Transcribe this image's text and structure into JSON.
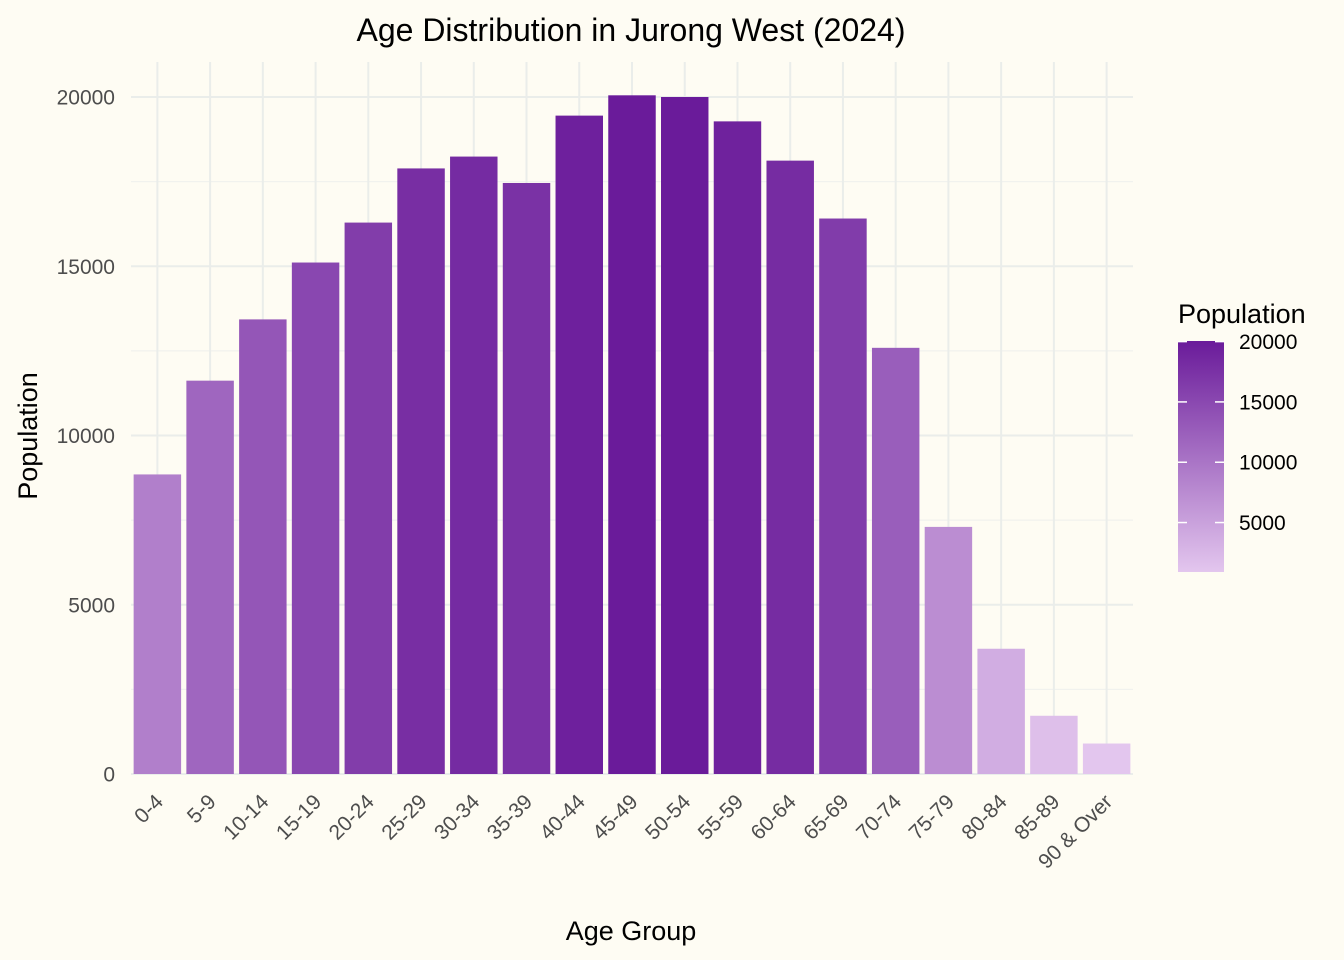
{
  "chart_data": {
    "type": "bar",
    "title": "Age Distribution in Jurong West (2024)",
    "xlabel": "Age Group",
    "ylabel": "Population",
    "categories": [
      "0-4",
      "5-9",
      "10-14",
      "15-19",
      "20-24",
      "25-29",
      "30-34",
      "35-39",
      "40-44",
      "45-49",
      "50-54",
      "55-59",
      "60-64",
      "65-69",
      "70-74",
      "75-79",
      "80-84",
      "85-89",
      "90 & Over"
    ],
    "values": [
      8850,
      11620,
      13430,
      15110,
      16290,
      17890,
      18240,
      17460,
      19450,
      20050,
      20000,
      19280,
      18120,
      16410,
      12590,
      7300,
      3700,
      1720,
      900
    ],
    "ylim": [
      0,
      21000
    ],
    "yticks": [
      "0",
      "5000",
      "10000",
      "15000",
      "20000"
    ],
    "grid": true,
    "legend": {
      "title": "Population",
      "type": "colorbar",
      "position": "right",
      "labels": [
        "20000",
        "15000",
        "10000",
        "5000"
      ],
      "range": [
        900,
        20050
      ],
      "color_low": "#E3C6EE",
      "color_high": "#6A1B9A"
    },
    "background": "#FEFCF3"
  }
}
